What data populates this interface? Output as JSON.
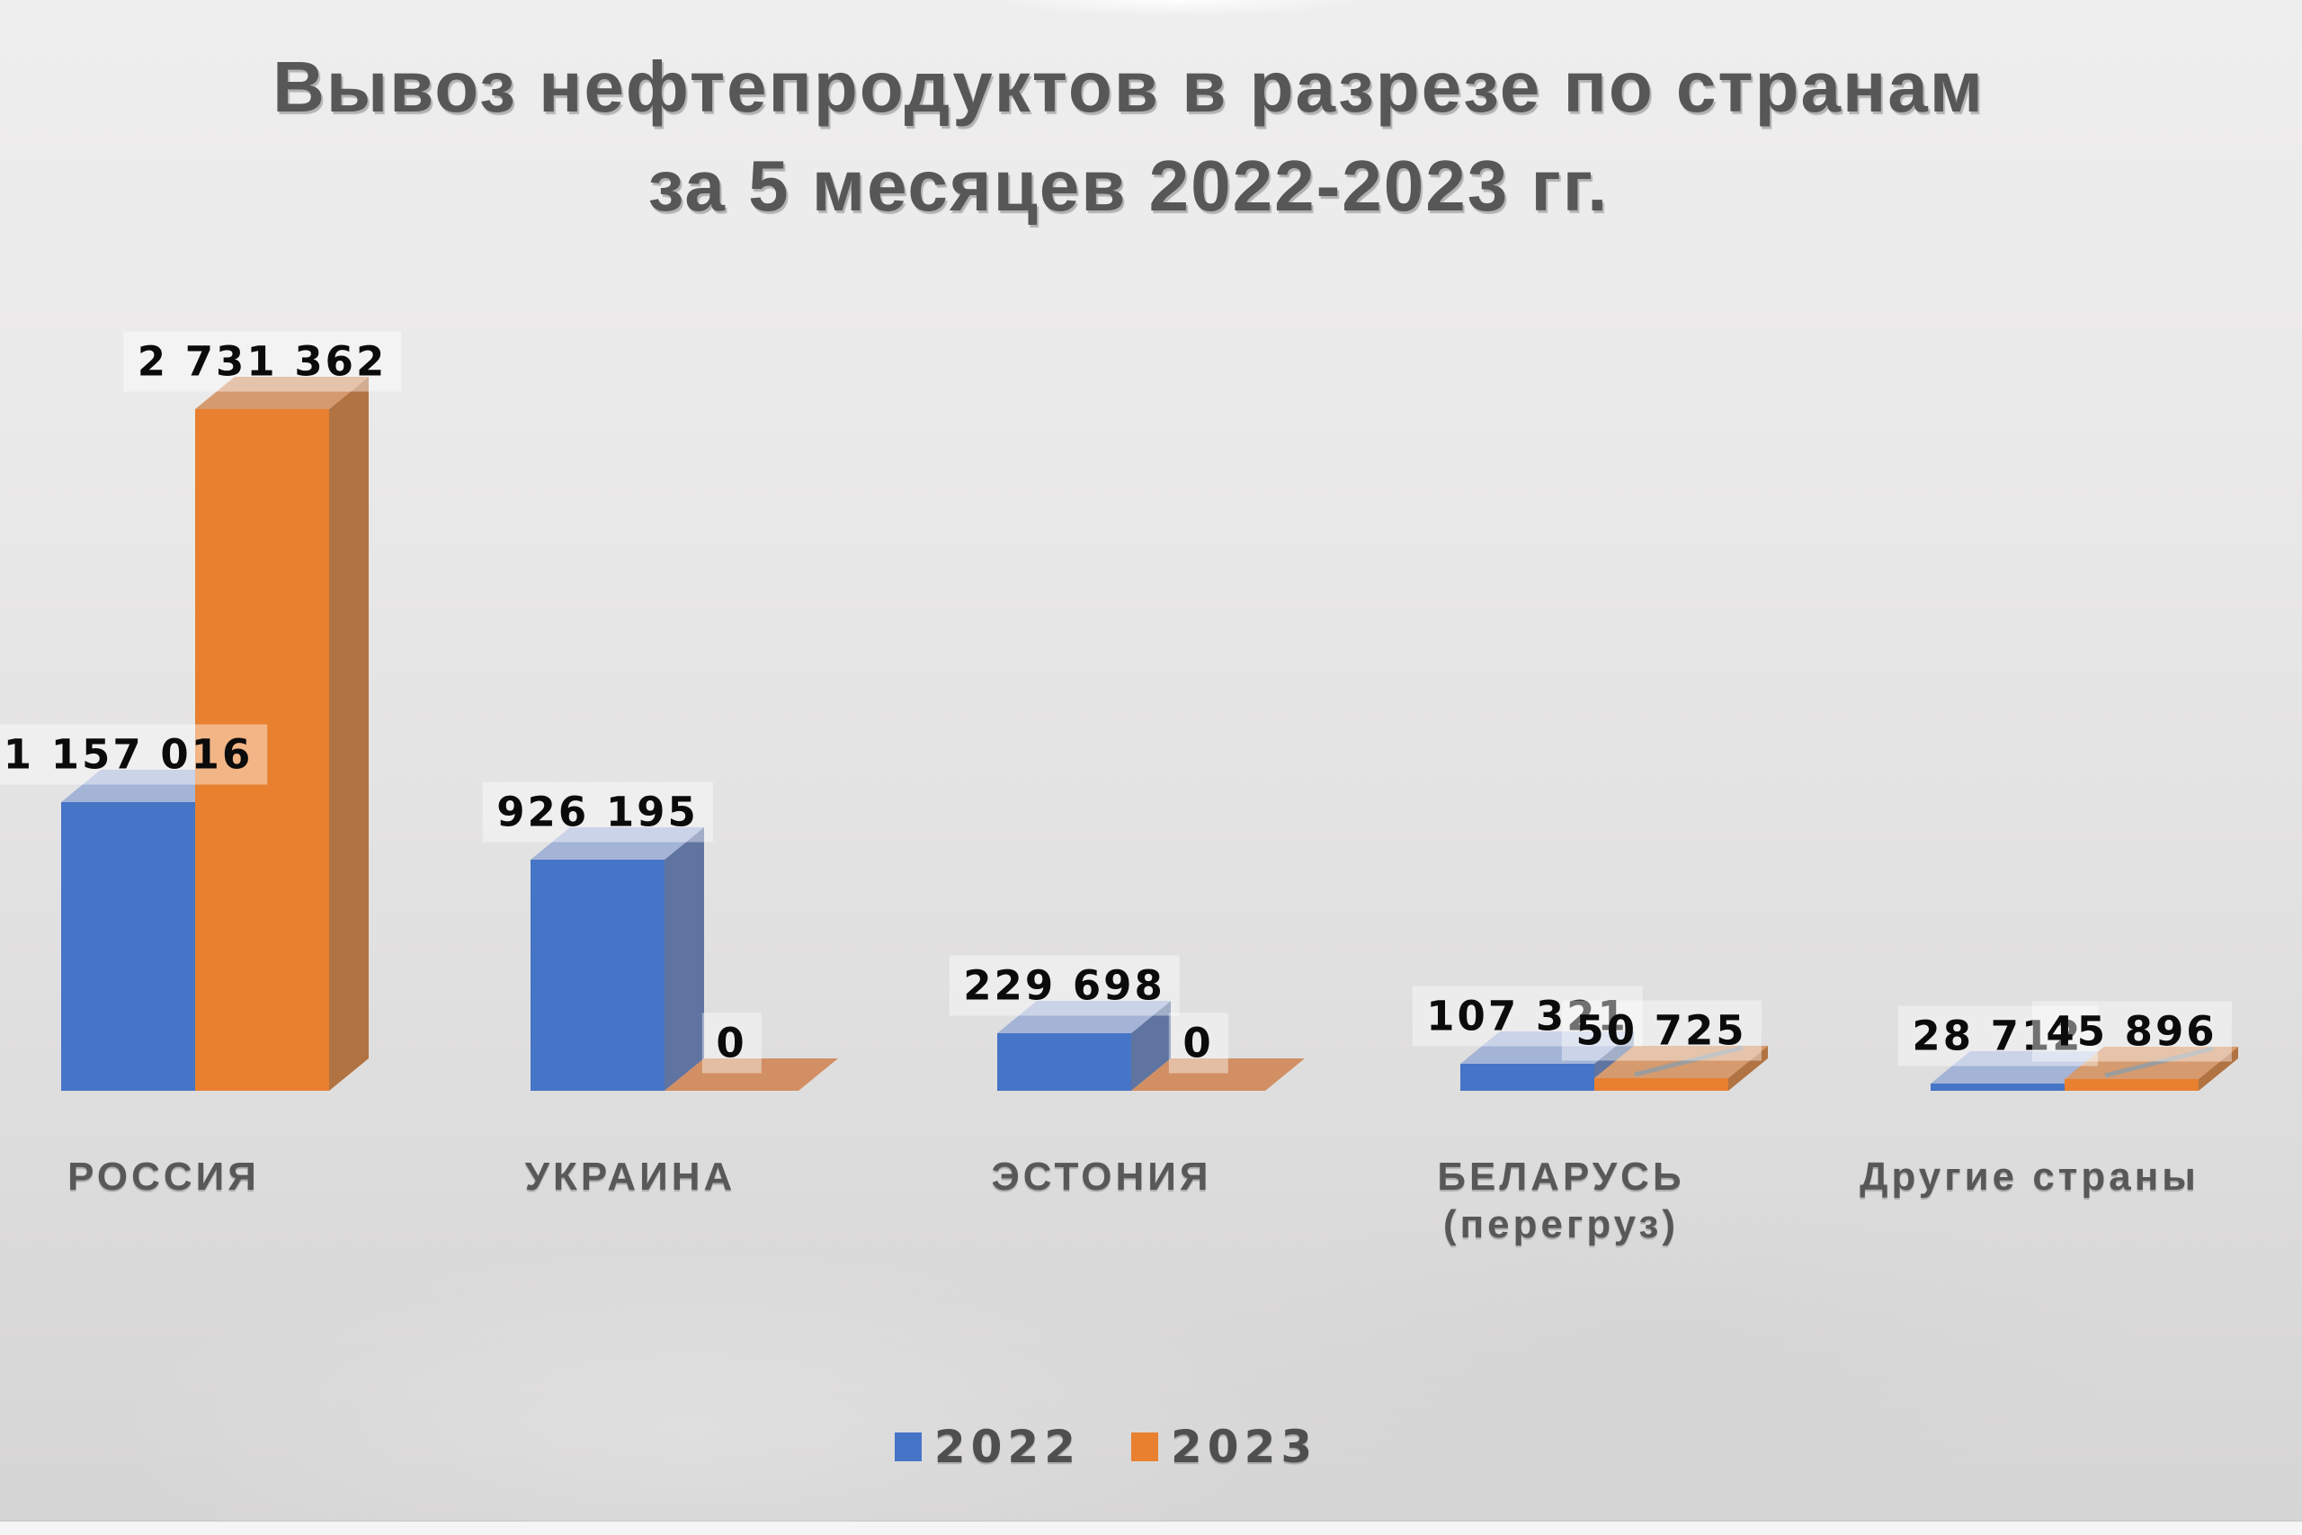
{
  "title": {
    "line1": "Вывоз нефтепродуктов в разрезе по странам",
    "line2": "за 5 месяцев 2022-2023 гг."
  },
  "chart_data": {
    "type": "bar",
    "style": "3d-clustered-column",
    "title": "Вывоз нефтепродуктов в разрезе по странам за 5 месяцев 2022-2023 гг.",
    "categories": [
      {
        "line1": "РОССИЯ"
      },
      {
        "line1": "УКРАИНА"
      },
      {
        "line1": "ЭСТОНИЯ"
      },
      {
        "line1": "БЕЛАРУСЬ",
        "line2": "(перегруз)"
      },
      {
        "line1": "Другие страны"
      }
    ],
    "series": [
      {
        "name": "2022",
        "color": "#4674C6",
        "values": [
          1157016,
          926195,
          229698,
          107321,
          28712
        ],
        "labels": [
          "1 157 016",
          "926 195",
          "229 698",
          "107 321",
          "28 712"
        ]
      },
      {
        "name": "2023",
        "color": "#E8802F",
        "values": [
          2731362,
          0,
          0,
          50725,
          45896
        ],
        "labels": [
          "2 731 362",
          "0",
          "0",
          "50 725",
          "45 896"
        ]
      }
    ],
    "legend": {
      "position": "bottom",
      "entries": [
        "2022",
        "2023"
      ]
    },
    "value_axis_visible": false,
    "gridlines": false,
    "data_labels_visible": true
  },
  "colors": {
    "bar_2022": {
      "front": "#4674C6",
      "top": "#A4B4D7",
      "side": "#5F74A1"
    },
    "bar_2023": {
      "front": "#E8802F",
      "top": "#D59A6E",
      "side": "#B17342",
      "zero_flat": "#D18F63"
    },
    "floor_line": "#9C9C9C",
    "title_text": "#575757",
    "category_text": "#585858",
    "legend_text": "#4F4F4F",
    "value_label_text": "#0B0B0B",
    "value_label_bg": "rgba(255,255,255,0.42)",
    "background_top": "#EFEEEE",
    "background_bottom": "#D6D5D5"
  }
}
